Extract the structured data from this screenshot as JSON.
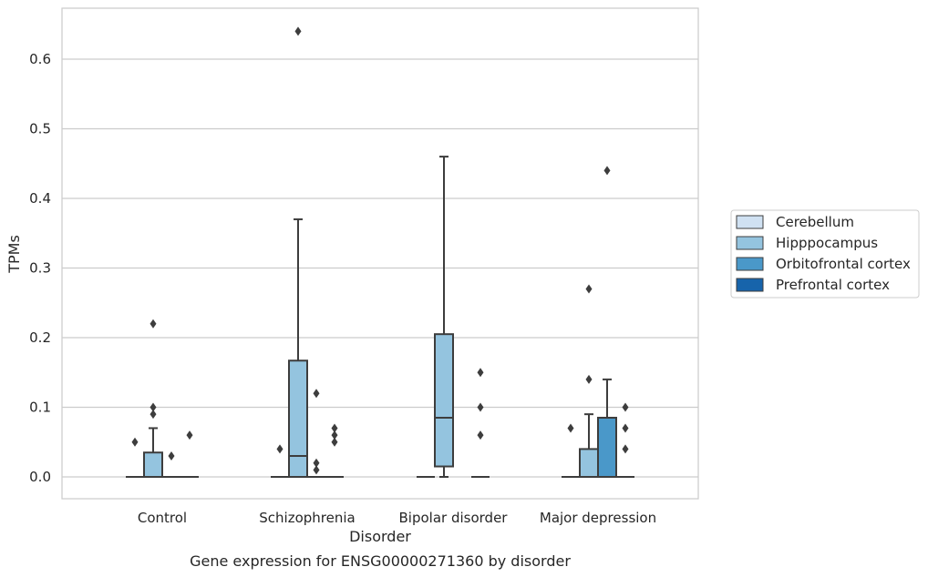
{
  "chart_data": {
    "type": "boxplot",
    "title": "",
    "caption": "Gene expression for ENSG00000271360 by disorder",
    "xlabel": "Disorder",
    "ylabel": "TPMs",
    "ylim": [
      -0.03,
      0.675
    ],
    "yticks": [
      0.0,
      0.1,
      0.2,
      0.3,
      0.4,
      0.5,
      0.6
    ],
    "ytick_labels": [
      "0.0",
      "0.1",
      "0.2",
      "0.3",
      "0.4",
      "0.5",
      "0.6"
    ],
    "grid": "horizontal",
    "legend_position": "right",
    "categories": [
      "Control",
      "Schizophrenia",
      "Bipolar disorder",
      "Major depression"
    ],
    "series": [
      {
        "name": "Cerebellum",
        "color": "#d0e1f2",
        "boxes": [
          {
            "min": 0,
            "q1": 0,
            "median": 0,
            "q3": 0,
            "max": 0,
            "outliers": [
              0.05
            ]
          },
          {
            "min": 0,
            "q1": 0,
            "median": 0,
            "q3": 0,
            "max": 0,
            "outliers": [
              0.04
            ]
          },
          {
            "min": 0,
            "q1": 0,
            "median": 0,
            "q3": 0,
            "max": 0,
            "outliers": []
          },
          {
            "min": 0,
            "q1": 0,
            "median": 0,
            "q3": 0,
            "max": 0,
            "outliers": [
              0.07
            ]
          }
        ]
      },
      {
        "name": "Hipppocampus",
        "color": "#94c4df",
        "boxes": [
          {
            "min": 0,
            "q1": 0,
            "median": 0,
            "q3": 0.035,
            "max": 0.07,
            "outliers": [
              0.09,
              0.1,
              0.22
            ]
          },
          {
            "min": 0,
            "q1": 0,
            "median": 0.03,
            "q3": 0.167,
            "max": 0.37,
            "outliers": [
              0.64
            ]
          },
          {
            "min": 0,
            "q1": 0.015,
            "median": 0.085,
            "q3": 0.205,
            "max": 0.46,
            "outliers": []
          },
          {
            "min": 0,
            "q1": 0,
            "median": 0,
            "q3": 0.04,
            "max": 0.09,
            "outliers": [
              0.14,
              0.27
            ]
          }
        ]
      },
      {
        "name": "Orbitofrontal cortex",
        "color": "#4a98c9",
        "boxes": [
          {
            "min": 0,
            "q1": 0,
            "median": 0,
            "q3": 0,
            "max": 0,
            "outliers": [
              0.03
            ]
          },
          {
            "min": 0,
            "q1": 0,
            "median": 0,
            "q3": 0,
            "max": 0,
            "outliers": [
              0.01,
              0.02,
              0.12
            ]
          },
          null,
          {
            "min": 0,
            "q1": 0,
            "median": 0.085,
            "q3": 0.085,
            "max": 0.14,
            "outliers": [
              0.44
            ]
          }
        ]
      },
      {
        "name": "Prefrontal cortex",
        "color": "#1764ab",
        "boxes": [
          {
            "min": 0,
            "q1": 0,
            "median": 0,
            "q3": 0,
            "max": 0,
            "outliers": [
              0.06
            ]
          },
          {
            "min": 0,
            "q1": 0,
            "median": 0,
            "q3": 0,
            "max": 0,
            "outliers": [
              0.05,
              0.06,
              0.07
            ]
          },
          {
            "min": 0,
            "q1": 0,
            "median": 0,
            "q3": 0,
            "max": 0,
            "outliers": [
              0.06,
              0.1,
              0.15
            ]
          },
          {
            "min": 0,
            "q1": 0,
            "median": 0,
            "q3": 0,
            "max": 0,
            "outliers": [
              0.04,
              0.07,
              0.1
            ]
          }
        ]
      }
    ]
  }
}
